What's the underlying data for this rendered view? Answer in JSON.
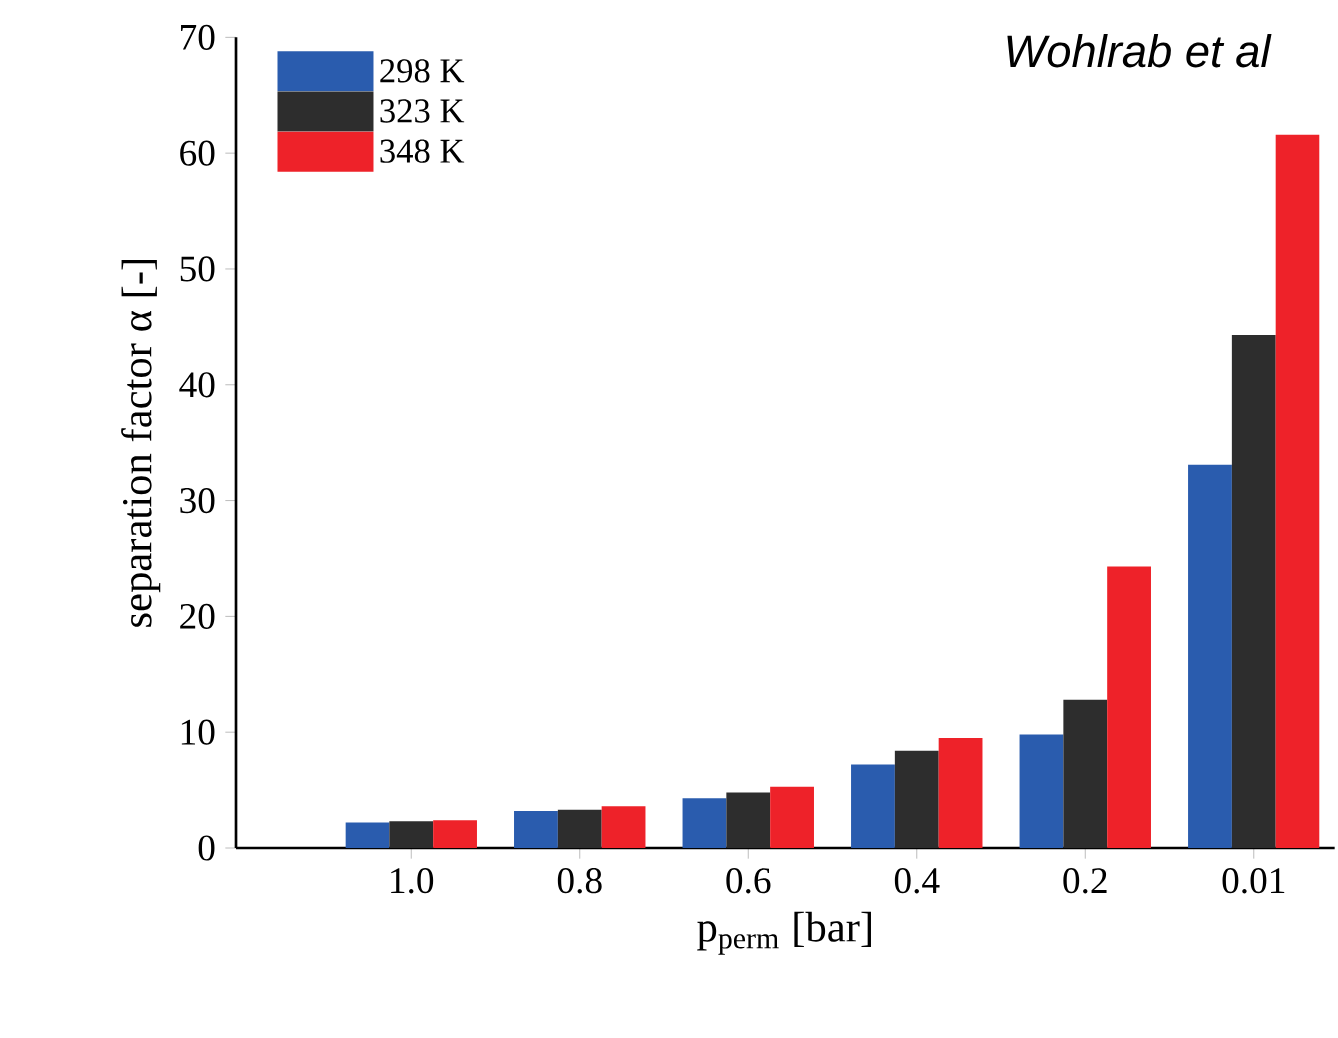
{
  "chart_data": {
    "type": "bar",
    "xlabel": "p$_{perm}$ [bar]",
    "ylabel": "separation factor α [-]",
    "categories": [
      "1.0",
      "0.8",
      "0.6",
      "0.4",
      "0.2",
      "0.01"
    ],
    "series": [
      {
        "name": "298 K",
        "color": "#2a5cae",
        "values": [
          2.2,
          3.2,
          4.3,
          7.2,
          9.8,
          33.1
        ]
      },
      {
        "name": "323 K",
        "color": "#2d2d2d",
        "values": [
          2.3,
          3.3,
          4.8,
          8.4,
          12.8,
          44.3
        ]
      },
      {
        "name": "348 K",
        "color": "#ee2229",
        "values": [
          2.4,
          3.6,
          5.3,
          9.5,
          24.3,
          61.6
        ]
      }
    ],
    "ylim": [
      0,
      70
    ],
    "yticks": [
      0,
      10,
      20,
      30,
      40,
      50,
      60,
      70
    ],
    "legend": "top left",
    "grid": false,
    "annotations": [
      "Wohlrab et al"
    ]
  }
}
